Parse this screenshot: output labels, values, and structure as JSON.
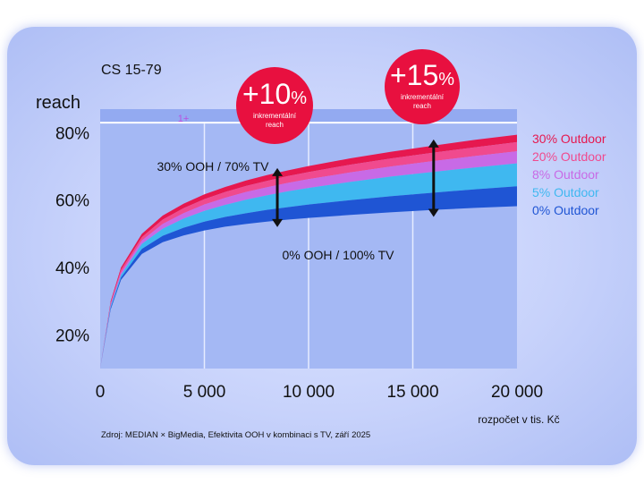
{
  "chart_data": {
    "type": "area",
    "title": "CS 15-79",
    "ylabel": "reach",
    "xlabel": "rozpočet v tis. Kč",
    "xlim": [
      0,
      20000
    ],
    "ylim": [
      10,
      87
    ],
    "x_ticks": [
      0,
      5000,
      10000,
      15000,
      20000
    ],
    "x_tick_labels": [
      "0",
      "5 000",
      "10 000",
      "15 000",
      "20 000"
    ],
    "y_ticks": [
      20,
      40,
      60,
      80
    ],
    "y_tick_labels": [
      "20%",
      "40%",
      "60%",
      "80%"
    ],
    "band_label": "1+",
    "band_range": [
      83,
      87
    ],
    "x": [
      0,
      500,
      1000,
      2000,
      3000,
      4000,
      5000,
      6000,
      7000,
      8000,
      9000,
      10000,
      12000,
      14000,
      16000,
      18000,
      20000
    ],
    "series": [
      {
        "name": "30% Outdoor",
        "color": "#e6184f",
        "values": [
          10,
          30,
          40,
          50,
          55.4,
          58.9,
          61.7,
          63.9,
          65.8,
          67.4,
          68.8,
          70.1,
          72.4,
          74.4,
          76.2,
          77.9,
          79.4
        ]
      },
      {
        "name": "20% Outdoor",
        "color": "#f04a8e",
        "values": [
          10,
          29.5,
          39.3,
          49,
          54.2,
          57.6,
          60.3,
          62.4,
          64.2,
          65.7,
          67.1,
          68.3,
          70.5,
          72.4,
          74.1,
          75.7,
          77.2
        ]
      },
      {
        "name": "8% Outdoor",
        "color": "#c86ae6",
        "values": [
          10,
          29,
          38.5,
          48,
          52.9,
          56.1,
          58.7,
          60.7,
          62.4,
          63.8,
          65.1,
          66.2,
          68.2,
          70,
          71.6,
          73.1,
          74.5
        ]
      },
      {
        "name": "5% Outdoor",
        "color": "#3fb8f0",
        "values": [
          10,
          28.5,
          37.8,
          47,
          51.5,
          54.5,
          56.8,
          58.6,
          60.1,
          61.4,
          62.6,
          63.6,
          65.4,
          67,
          68.4,
          69.7,
          70.9
        ]
      },
      {
        "name": "0% Outdoor",
        "color": "#1f55d4",
        "values": [
          10,
          28,
          37,
          45.5,
          49.4,
          51.8,
          53.6,
          55,
          56.1,
          57.1,
          57.9,
          58.7,
          60,
          61.2,
          62.2,
          63.2,
          64.1
        ]
      }
    ],
    "lower_edge": [
      10,
      27.5,
      36.3,
      44,
      47.5,
      49.5,
      51,
      52.1,
      52.9,
      53.6,
      54.2,
      54.7,
      55.6,
      56.4,
      57.1,
      57.7,
      58.2
    ],
    "annotations": [
      {
        "big": "+10",
        "pct": "%",
        "sub1": "inkrementální",
        "sub2": "reach",
        "x": 8500,
        "y_top": 69.5,
        "y_bottom": 52
      },
      {
        "big": "+15",
        "pct": "%",
        "sub1": "inkrementální",
        "sub2": "reach",
        "x": 16000,
        "y_top": 78,
        "y_bottom": 55
      }
    ],
    "mix_label_top": "30% OOH  /  70% TV",
    "mix_label_bottom": "0% OOH  /  100% TV",
    "source": "Zdroj: MEDIAN × BigMedia, Efektivita OOH v kombinaci s TV, září  2025"
  }
}
